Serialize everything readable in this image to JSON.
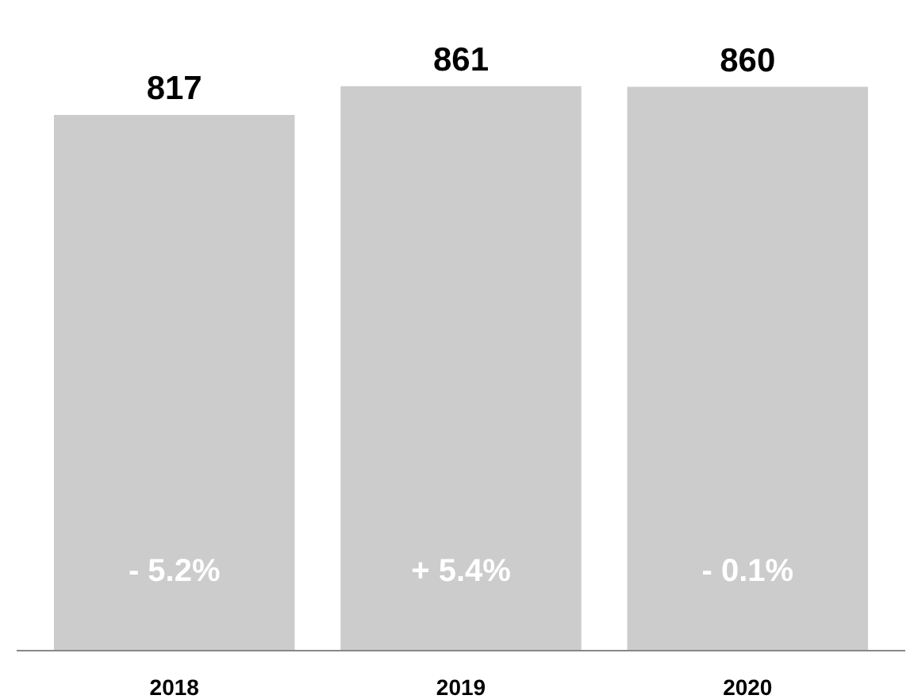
{
  "chart_data": {
    "type": "bar",
    "categories": [
      "2018",
      "2019",
      "2020"
    ],
    "values": [
      817,
      861,
      860
    ],
    "color": "#cccccc",
    "data_labels": true,
    "annotations": [
      "- 5.2%",
      "+ 5.4%",
      "- 0.1%"
    ]
  }
}
